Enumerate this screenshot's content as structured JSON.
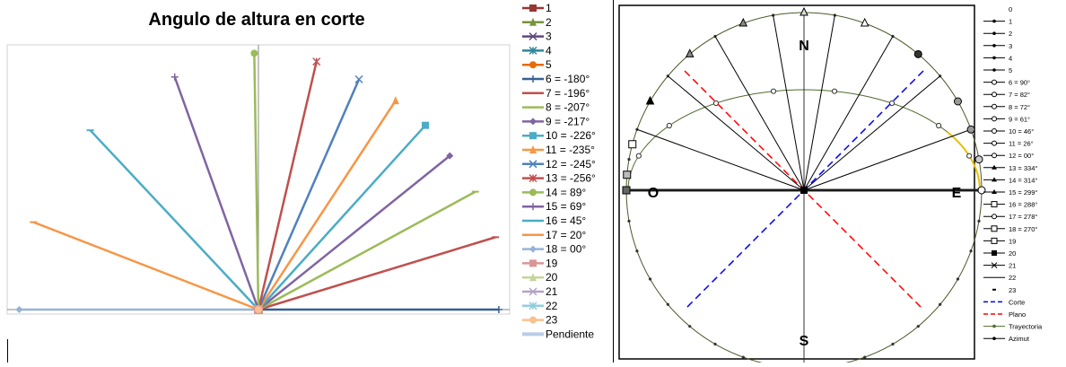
{
  "chart_data": [
    {
      "type": "line",
      "title": "Angulo de altura en corte",
      "xlim": [
        -100,
        100
      ],
      "ylim": [
        0,
        100
      ],
      "legend_position": "right",
      "series": [
        {
          "name": "1",
          "color": "#953735",
          "marker": "square"
        },
        {
          "name": "2",
          "color": "#76923c",
          "marker": "triangle"
        },
        {
          "name": "3",
          "color": "#5f497a",
          "marker": "x"
        },
        {
          "name": "4",
          "color": "#31859c",
          "marker": "asterisk"
        },
        {
          "name": "5",
          "color": "#e46c0a",
          "marker": "circle"
        },
        {
          "name": "6 = -180°",
          "color": "#366092",
          "marker": "plus",
          "x": 98.5,
          "y": 0.0
        },
        {
          "name": "7 = -196°",
          "color": "#c0504d",
          "marker": "dash",
          "x": 97.1,
          "y": 27.8
        },
        {
          "name": "8 = -207°",
          "color": "#9bbb59",
          "marker": "dash",
          "x": 88.9,
          "y": 45.3
        },
        {
          "name": "9 = -217°",
          "color": "#8064a2",
          "marker": "diamond",
          "x": 78.4,
          "y": 59.1
        },
        {
          "name": "10 = -226°",
          "color": "#4bacc6",
          "marker": "square",
          "x": 68.4,
          "y": 70.8
        },
        {
          "name": "11 = -235°",
          "color": "#f79646",
          "marker": "triangle",
          "x": 56.2,
          "y": 80.3
        },
        {
          "name": "12 = -245°",
          "color": "#4f81bd",
          "marker": "x",
          "x": 41.2,
          "y": 88.5
        },
        {
          "name": "13 = -256°",
          "color": "#c0504d",
          "marker": "asterisk",
          "x": 23.8,
          "y": 95.3
        },
        {
          "name": "14 = 89°",
          "color": "#9bbb59",
          "marker": "circle",
          "x": -1.7,
          "y": 98.5
        },
        {
          "name": "15 = 69°",
          "color": "#8064a2",
          "marker": "plus",
          "x": -34.3,
          "y": 89.4
        },
        {
          "name": "16 = 45°",
          "color": "#4bacc6",
          "marker": "dash",
          "x": -68.9,
          "y": 68.9
        },
        {
          "name": "17 = 20°",
          "color": "#f79646",
          "marker": "dash",
          "x": -92.2,
          "y": 33.6
        },
        {
          "name": "18 = 00°",
          "color": "#95b3d7",
          "marker": "diamond",
          "x": -98.0,
          "y": 0.0
        },
        {
          "name": "19",
          "color": "#d99694",
          "marker": "square"
        },
        {
          "name": "20",
          "color": "#c3d69b",
          "marker": "triangle"
        },
        {
          "name": "21",
          "color": "#b3a2c7",
          "marker": "x"
        },
        {
          "name": "22",
          "color": "#93cddd",
          "marker": "asterisk"
        },
        {
          "name": "23",
          "color": "#fac08f",
          "marker": "circle"
        },
        {
          "name": "Pendiente",
          "color": "#b9cde5",
          "marker": "none"
        }
      ]
    },
    {
      "type": "polar",
      "cardinal_labels": {
        "north": "N",
        "south": "S",
        "east": "E",
        "west": "O"
      },
      "legend_position": "right",
      "legend_entries": [
        {
          "label": "0",
          "style": "none"
        },
        {
          "label": "1",
          "style": "dot"
        },
        {
          "label": "2",
          "style": "dot"
        },
        {
          "label": "3",
          "style": "dot"
        },
        {
          "label": "4",
          "style": "dot"
        },
        {
          "label": "5",
          "style": "dot"
        },
        {
          "label": "6 = 90°",
          "style": "open-circle"
        },
        {
          "label": "7 = 82°",
          "style": "open-circle"
        },
        {
          "label": "8 = 72°",
          "style": "open-circle"
        },
        {
          "label": "9 = 61°",
          "style": "open-circle"
        },
        {
          "label": "10 = 46°",
          "style": "open-circle"
        },
        {
          "label": "11 = 26°",
          "style": "open-circle"
        },
        {
          "label": "12 = 00°",
          "style": "open-circle"
        },
        {
          "label": "13 = 334°",
          "style": "triangle"
        },
        {
          "label": "14 = 314°",
          "style": "triangle"
        },
        {
          "label": "15 = 299°",
          "style": "triangle"
        },
        {
          "label": "16 = 288°",
          "style": "open-square"
        },
        {
          "label": "17 = 278°",
          "style": "open-circle"
        },
        {
          "label": "18 = 270°",
          "style": "open-square"
        },
        {
          "label": "19",
          "style": "open-square"
        },
        {
          "label": "20",
          "style": "filled-square"
        },
        {
          "label": "21",
          "style": "x"
        },
        {
          "label": "22",
          "style": "dash"
        },
        {
          "label": "23",
          "style": "dash-only"
        },
        {
          "label": "Corte",
          "style": "blue-dashed"
        },
        {
          "label": "Plano",
          "style": "red-dashed"
        },
        {
          "label": "Trayectoria",
          "style": "green-line-dot"
        },
        {
          "label": "Azimut",
          "style": "dark-line-dot"
        }
      ],
      "sun_positions_azimuth_deg": [
        90,
        82,
        72,
        61,
        46,
        26,
        0,
        334,
        314,
        299,
        288,
        278,
        270
      ],
      "corte_line_angle_deg": 45,
      "plano_line_angle_deg": 135,
      "colors": {
        "corte": "#0000ff",
        "plano": "#ff0000",
        "trayectoria": "#4e6b2c",
        "highlight": "#e8c000",
        "outer": "#4a5a2a"
      }
    }
  ]
}
